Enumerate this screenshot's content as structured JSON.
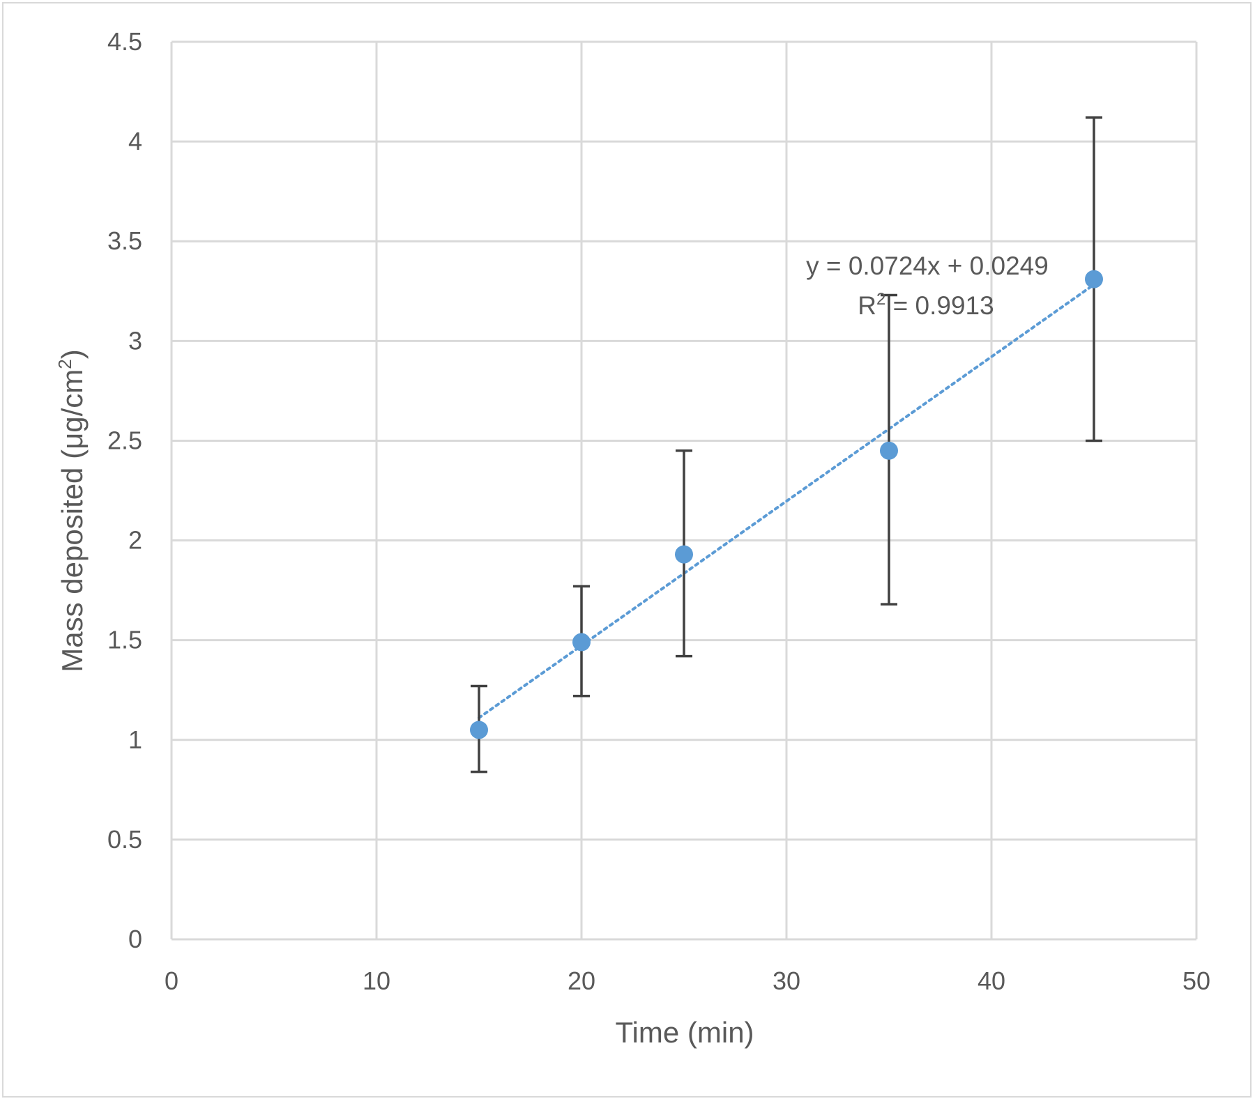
{
  "chart_data": {
    "type": "scatter",
    "title": "",
    "xlabel": "Time (min)",
    "ylabel_main": "Mass deposited (μg/cm",
    "ylabel_sup": "2",
    "ylabel_close": ")",
    "xlim": [
      0,
      50
    ],
    "ylim": [
      0,
      4.5
    ],
    "xticks": [
      0,
      10,
      20,
      30,
      40,
      50
    ],
    "yticks": [
      0,
      0.5,
      1,
      1.5,
      2,
      2.5,
      3,
      3.5,
      4,
      4.5
    ],
    "xtick_labels": [
      "0",
      "10",
      "20",
      "30",
      "40",
      "50"
    ],
    "ytick_labels": [
      "0",
      "0.5",
      "1",
      "1.5",
      "2",
      "2.5",
      "3",
      "3.5",
      "4",
      "4.5"
    ],
    "grid": true,
    "series": [
      {
        "x": [
          15,
          20,
          25,
          35,
          45
        ],
        "y": [
          1.05,
          1.49,
          1.93,
          2.45,
          3.31
        ],
        "err_low": [
          0.84,
          1.22,
          1.42,
          1.68,
          2.5
        ],
        "err_high": [
          1.27,
          1.77,
          2.45,
          3.23,
          4.12
        ],
        "color": "#5b9bd5"
      }
    ],
    "trendline": {
      "slope": 0.0724,
      "intercept": 0.0249,
      "x_range": [
        15,
        45
      ],
      "color": "#5b9bd5",
      "style": "dotted",
      "equation_label": "y = 0.0724x + 0.0249",
      "r2_prefix": "R",
      "r2_sup": "2",
      "r2_value": " = 0.9913"
    },
    "colors": {
      "grid": "#d9d9d9",
      "error_bar": "#404040",
      "text": "#595959"
    }
  }
}
